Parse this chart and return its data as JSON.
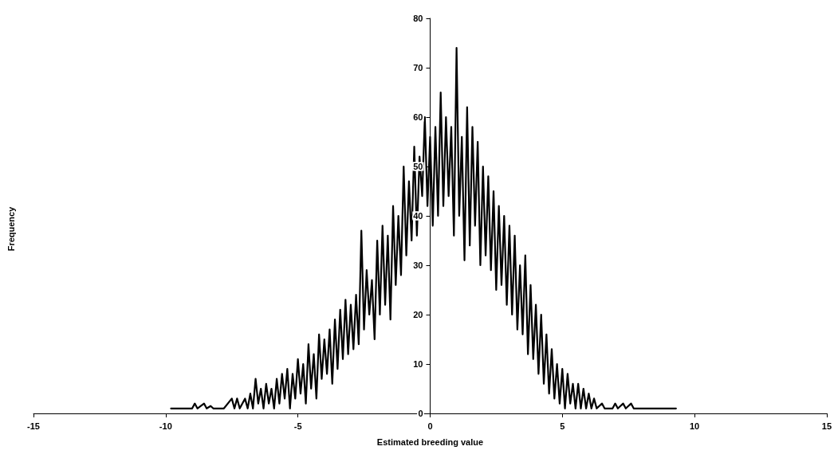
{
  "chart_data": {
    "type": "line",
    "xlabel": "Estimated breeding value",
    "ylabel": "Frequency",
    "x": [
      -9.8,
      -9.4,
      -9.0,
      -8.9,
      -8.8,
      -8.55,
      -8.45,
      -8.3,
      -8.2,
      -7.8,
      -7.5,
      -7.4,
      -7.3,
      -7.2,
      -7.0,
      -6.9,
      -6.8,
      -6.7,
      -6.6,
      -6.5,
      -6.4,
      -6.3,
      -6.2,
      -6.1,
      -6.0,
      -5.9,
      -5.8,
      -5.7,
      -5.6,
      -5.5,
      -5.4,
      -5.3,
      -5.2,
      -5.1,
      -5.0,
      -4.9,
      -4.8,
      -4.7,
      -4.6,
      -4.5,
      -4.4,
      -4.3,
      -4.2,
      -4.1,
      -4.0,
      -3.9,
      -3.8,
      -3.7,
      -3.6,
      -3.5,
      -3.4,
      -3.3,
      -3.2,
      -3.1,
      -3.0,
      -2.9,
      -2.8,
      -2.7,
      -2.6,
      -2.5,
      -2.4,
      -2.3,
      -2.2,
      -2.1,
      -2.0,
      -1.9,
      -1.8,
      -1.7,
      -1.6,
      -1.5,
      -1.4,
      -1.3,
      -1.2,
      -1.1,
      -1.0,
      -0.9,
      -0.8,
      -0.7,
      -0.6,
      -0.5,
      -0.4,
      -0.3,
      -0.2,
      -0.1,
      0.0,
      0.1,
      0.2,
      0.3,
      0.4,
      0.5,
      0.6,
      0.7,
      0.8,
      0.9,
      1.0,
      1.1,
      1.2,
      1.3,
      1.4,
      1.5,
      1.6,
      1.7,
      1.8,
      1.9,
      2.0,
      2.1,
      2.2,
      2.3,
      2.4,
      2.5,
      2.6,
      2.7,
      2.8,
      2.9,
      3.0,
      3.1,
      3.2,
      3.3,
      3.4,
      3.5,
      3.6,
      3.7,
      3.8,
      3.9,
      4.0,
      4.1,
      4.2,
      4.3,
      4.4,
      4.5,
      4.6,
      4.7,
      4.8,
      4.9,
      5.0,
      5.1,
      5.2,
      5.3,
      5.4,
      5.5,
      5.6,
      5.7,
      5.8,
      5.9,
      6.0,
      6.1,
      6.2,
      6.3,
      6.5,
      6.6,
      6.9,
      7.0,
      7.1,
      7.3,
      7.4,
      7.6,
      7.7,
      9.3
    ],
    "series": [
      {
        "color": "#000000",
        "values": [
          1,
          1,
          1,
          2,
          1,
          2,
          1,
          1.5,
          1,
          1,
          3,
          1,
          3,
          1,
          3,
          1,
          4,
          1,
          7,
          2,
          5,
          1,
          6,
          2,
          5,
          1,
          7,
          2,
          8,
          3,
          9,
          1,
          8,
          3,
          11,
          4,
          10,
          2,
          14,
          5,
          12,
          3,
          16,
          7,
          15,
          8,
          17,
          6,
          19,
          9,
          21,
          11,
          23,
          12,
          22,
          13,
          24,
          14,
          37,
          17,
          29,
          20,
          27,
          15,
          35,
          20,
          38,
          22,
          36,
          19,
          42,
          26,
          40,
          28,
          50,
          32,
          47,
          35,
          54,
          36,
          52,
          44,
          60,
          42,
          56,
          38,
          58,
          40,
          65,
          42,
          60,
          44,
          58,
          36,
          74,
          40,
          56,
          31,
          62,
          34,
          58,
          38,
          55,
          30,
          50,
          32,
          48,
          29,
          45,
          25,
          42,
          26,
          40,
          22,
          38,
          20,
          36,
          17,
          30,
          16,
          32,
          12,
          26,
          11,
          22,
          8,
          20,
          6,
          16,
          4,
          13,
          3,
          10,
          2,
          9,
          1,
          8,
          2,
          6,
          1,
          6,
          1,
          5,
          1,
          4,
          1,
          3,
          1,
          2,
          1,
          1,
          2,
          1,
          2,
          1,
          2,
          1,
          1
        ]
      }
    ],
    "xlim": [
      -15,
      15
    ],
    "xticks": [
      -15,
      -10,
      -5,
      0,
      5,
      10,
      15
    ],
    "ylim": [
      0,
      80
    ],
    "yticks": [
      0,
      10,
      20,
      30,
      40,
      50,
      60,
      70,
      80
    ],
    "grid": false,
    "marker": "none",
    "line_style": "solid"
  }
}
